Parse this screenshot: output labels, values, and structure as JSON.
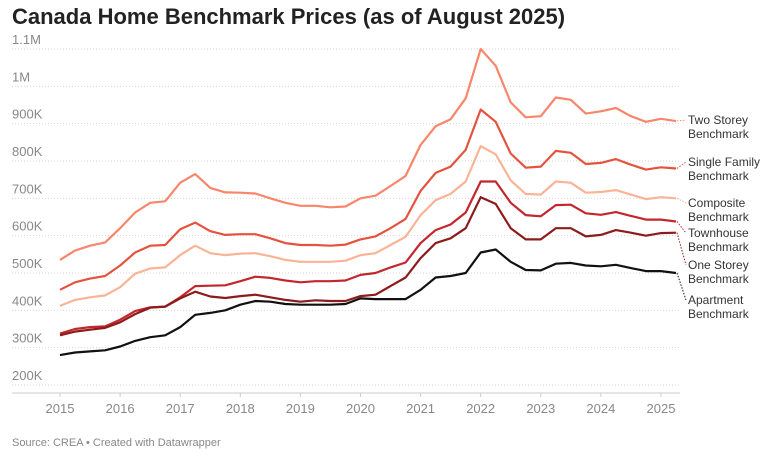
{
  "chart_data": {
    "type": "line",
    "title": "Canada Home Benchmark Prices (as of August 2025)",
    "source": "Source: CREA • Created with Datawrapper",
    "x": [
      2015,
      2015.25,
      2015.5,
      2015.75,
      2016,
      2016.25,
      2016.5,
      2016.75,
      2017,
      2017.25,
      2017.5,
      2017.75,
      2018,
      2018.25,
      2018.5,
      2018.75,
      2019,
      2019.25,
      2019.5,
      2019.75,
      2020,
      2020.25,
      2020.5,
      2020.75,
      2021,
      2021.25,
      2021.5,
      2021.75,
      2022,
      2022.25,
      2022.5,
      2022.75,
      2023,
      2023.25,
      2023.5,
      2023.75,
      2024,
      2024.25,
      2024.5,
      2024.75,
      2025,
      2025.25
    ],
    "xlim": [
      2014.8,
      2025.4
    ],
    "xticks": [
      2015,
      2016,
      2017,
      2018,
      2019,
      2020,
      2021,
      2022,
      2023,
      2024,
      2025
    ],
    "ylim": [
      200000,
      1100000
    ],
    "yticks": [
      {
        "value": 200000,
        "label": "200K"
      },
      {
        "value": 300000,
        "label": "300K"
      },
      {
        "value": 400000,
        "label": "400K"
      },
      {
        "value": 500000,
        "label": "500K"
      },
      {
        "value": 600000,
        "label": "600K"
      },
      {
        "value": 700000,
        "label": "700K"
      },
      {
        "value": 800000,
        "label": "800K"
      },
      {
        "value": 900000,
        "label": "900K"
      },
      {
        "value": 1000000,
        "label": "1M"
      },
      {
        "value": 1100000,
        "label": "1.1M"
      }
    ],
    "grid": true,
    "series": [
      {
        "name": "Two Storey Benchmark",
        "color": "#f7866b",
        "values": [
          535000,
          560000,
          573000,
          582000,
          620000,
          662000,
          688000,
          692000,
          742000,
          765000,
          728000,
          716000,
          715000,
          713000,
          700000,
          688000,
          680000,
          680000,
          676000,
          678000,
          700000,
          707000,
          733000,
          760000,
          843000,
          893000,
          912000,
          968000,
          1100000,
          1055000,
          957000,
          917000,
          920000,
          970000,
          964000,
          927000,
          933000,
          942000,
          920000,
          905000,
          913000,
          907000
        ]
      },
      {
        "name": "Single Family Benchmark",
        "color": "#e5533f",
        "values": [
          455000,
          475000,
          485000,
          492000,
          520000,
          555000,
          573000,
          575000,
          617000,
          635000,
          612000,
          602000,
          604000,
          604000,
          593000,
          580000,
          575000,
          575000,
          573000,
          576000,
          590000,
          598000,
          620000,
          645000,
          720000,
          768000,
          785000,
          830000,
          938000,
          905000,
          820000,
          782000,
          785000,
          827000,
          822000,
          792000,
          795000,
          805000,
          790000,
          777000,
          783000,
          780000
        ]
      },
      {
        "name": "Composite Benchmark",
        "color": "#f9b497",
        "values": [
          412000,
          428000,
          435000,
          440000,
          462000,
          498000,
          512000,
          515000,
          548000,
          573000,
          553000,
          548000,
          552000,
          553000,
          545000,
          535000,
          530000,
          530000,
          530000,
          533000,
          548000,
          553000,
          575000,
          597000,
          655000,
          695000,
          712000,
          745000,
          840000,
          818000,
          748000,
          712000,
          710000,
          745000,
          742000,
          715000,
          717000,
          722000,
          710000,
          698000,
          703000,
          700000
        ]
      },
      {
        "name": "Townhouse Benchmark",
        "color": "#c2272d",
        "values": [
          338000,
          350000,
          355000,
          357000,
          375000,
          398000,
          408000,
          410000,
          435000,
          465000,
          466000,
          467000,
          478000,
          490000,
          487000,
          480000,
          475000,
          478000,
          478000,
          480000,
          495000,
          500000,
          515000,
          528000,
          580000,
          615000,
          630000,
          662000,
          745000,
          745000,
          688000,
          655000,
          652000,
          682000,
          683000,
          660000,
          656000,
          663000,
          653000,
          643000,
          643000,
          638000
        ]
      },
      {
        "name": "One Storey Benchmark",
        "color": "#8c1b1b",
        "values": [
          333000,
          343000,
          348000,
          353000,
          368000,
          390000,
          407000,
          410000,
          432000,
          450000,
          437000,
          433000,
          438000,
          442000,
          435000,
          428000,
          423000,
          427000,
          425000,
          425000,
          438000,
          442000,
          465000,
          488000,
          540000,
          580000,
          593000,
          620000,
          703000,
          685000,
          620000,
          590000,
          590000,
          620000,
          620000,
          598000,
          602000,
          615000,
          608000,
          600000,
          607000,
          608000
        ]
      },
      {
        "name": "Apartment Benchmark",
        "color": "#111111",
        "values": [
          280000,
          287000,
          290000,
          293000,
          303000,
          318000,
          328000,
          333000,
          355000,
          388000,
          393000,
          400000,
          415000,
          425000,
          423000,
          417000,
          415000,
          415000,
          415000,
          417000,
          432000,
          430000,
          430000,
          430000,
          455000,
          488000,
          492000,
          500000,
          555000,
          563000,
          530000,
          508000,
          507000,
          525000,
          527000,
          520000,
          518000,
          522000,
          513000,
          505000,
          505000,
          500000
        ]
      }
    ]
  }
}
